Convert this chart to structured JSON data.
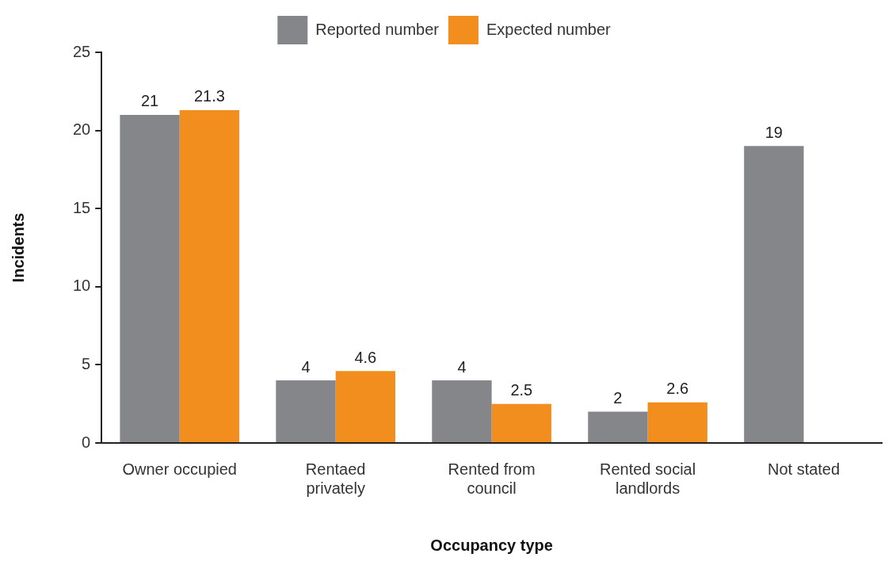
{
  "chart_data": {
    "type": "bar",
    "xlabel": "Occupancy type",
    "ylabel": "Incidents",
    "categories": [
      "Owner occupied",
      "Rentaed privately",
      "Rented from council",
      "Rented social landlords",
      "Not stated"
    ],
    "series": [
      {
        "name": "Reported number",
        "color": "#85868a",
        "values": [
          21,
          4,
          4,
          2,
          19
        ]
      },
      {
        "name": "Expected number",
        "color": "#f28e1e",
        "values": [
          21.3,
          4.6,
          2.5,
          2.6,
          null
        ]
      }
    ],
    "ylim": [
      0,
      25
    ],
    "yticks": [
      0,
      5,
      10,
      15,
      20,
      25
    ],
    "grid": false,
    "legend": "top",
    "data_labels": true
  }
}
